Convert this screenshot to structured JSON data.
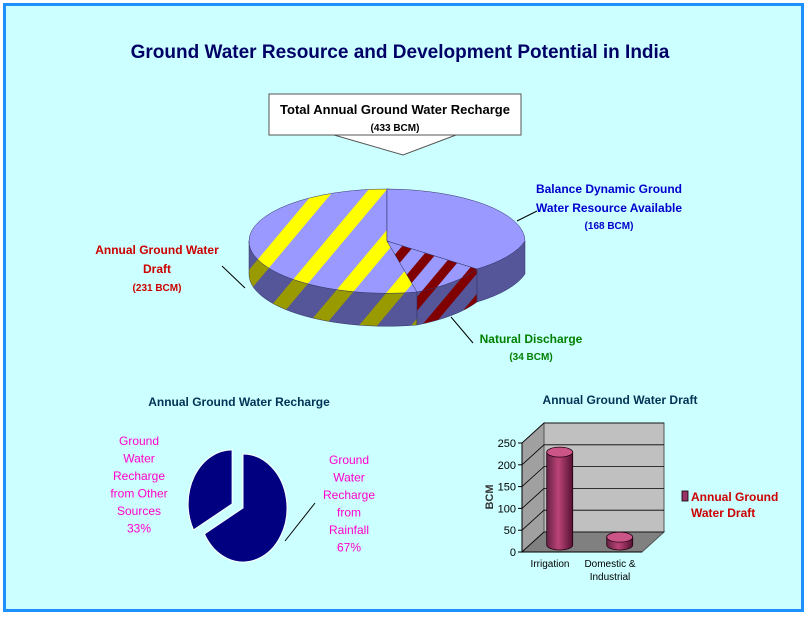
{
  "title": "Ground Water Resource and Development Potential in India",
  "colors": {
    "background": "#ccffff",
    "border": "#1e90ff",
    "title": "#000066",
    "main_pie_light": "#9999ff",
    "main_pie_dark": "#555599",
    "main_pie_yellow": "#ffff00",
    "main_pie_olive": "#999900",
    "main_pie_maroon": "#800000",
    "small_pie": "#000080",
    "bar": "#993366",
    "small_labels": "#ff00cc",
    "draft_label": "#ff0000",
    "discharge_label": "#008000",
    "balance_label": "#0000cc"
  },
  "callout": {
    "title": "Total Annual Ground Water Recharge",
    "value": "(433 BCM)"
  },
  "chart_data": [
    {
      "type": "pie",
      "variant": "3d-exploded",
      "title": "",
      "total_label": "Total Annual Ground Water Recharge (433 BCM)",
      "slices": [
        {
          "label_lines": [
            "Balance Dynamic Ground",
            "Water Resource Available"
          ],
          "value_label": "(168 BCM)",
          "value": 168
        },
        {
          "label_lines": [
            "Natural Discharge"
          ],
          "value_label": "(34 BCM)",
          "value": 34
        },
        {
          "label_lines": [
            "Annual Ground Water",
            "Draft"
          ],
          "value_label": "(231 BCM)",
          "value": 231
        }
      ]
    },
    {
      "type": "pie",
      "variant": "exploded",
      "title": "Annual Ground Water Recharge",
      "slices": [
        {
          "label_lines": [
            "Ground",
            "Water",
            "Recharge",
            "from",
            "Rainfall",
            "67%"
          ],
          "value": 67
        },
        {
          "label_lines": [
            "Ground",
            "Water",
            "Recharge",
            "from Other",
            "Sources",
            "33%"
          ],
          "value": 33
        }
      ]
    },
    {
      "type": "bar",
      "variant": "3d-cylinder",
      "title": "Annual Ground Water Draft",
      "categories": [
        [
          "Irrigation"
        ],
        [
          "Domestic &",
          "Industrial"
        ]
      ],
      "series": [
        {
          "name_lines": [
            "Annual Ground",
            "Water Draft"
          ],
          "values": [
            213,
            18
          ]
        }
      ],
      "ylabel": "BCM",
      "ylim": [
        0,
        250
      ],
      "yticks": [
        0,
        50,
        100,
        150,
        200,
        250
      ],
      "grid": true,
      "legend": "right"
    }
  ]
}
